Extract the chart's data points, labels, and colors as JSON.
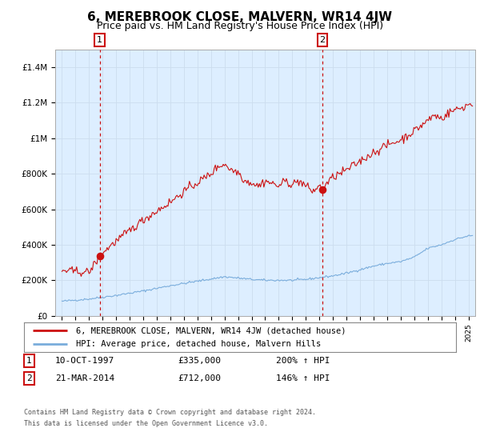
{
  "title": "6, MEREBROOK CLOSE, MALVERN, WR14 4JW",
  "subtitle": "Price paid vs. HM Land Registry's House Price Index (HPI)",
  "title_fontsize": 11,
  "subtitle_fontsize": 9,
  "ylim": [
    0,
    1500000
  ],
  "xlim_start": 1994.5,
  "xlim_end": 2025.5,
  "yticks": [
    0,
    200000,
    400000,
    600000,
    800000,
    1000000,
    1200000,
    1400000
  ],
  "ytick_labels": [
    "£0",
    "£200K",
    "£400K",
    "£600K",
    "£800K",
    "£1M",
    "£1.2M",
    "£1.4M"
  ],
  "sale1_year": 1997.78,
  "sale1_price": 335000,
  "sale1_label": "1",
  "sale1_date": "10-OCT-1997",
  "sale1_pct": "200%",
  "sale2_year": 2014.22,
  "sale2_price": 712000,
  "sale2_label": "2",
  "sale2_date": "21-MAR-2014",
  "sale2_pct": "146%",
  "hpi_line_color": "#7aaddc",
  "price_line_color": "#cc1111",
  "dot_color": "#cc1111",
  "vline_color": "#cc1111",
  "grid_color": "#ccddee",
  "plot_bg_color": "#ddeeff",
  "legend_line1": "6, MEREBROOK CLOSE, MALVERN, WR14 4JW (detached house)",
  "legend_line2": "HPI: Average price, detached house, Malvern Hills",
  "footer1": "Contains HM Land Registry data © Crown copyright and database right 2024.",
  "footer2": "This data is licensed under the Open Government Licence v3.0.",
  "bg_color": "#ffffff"
}
